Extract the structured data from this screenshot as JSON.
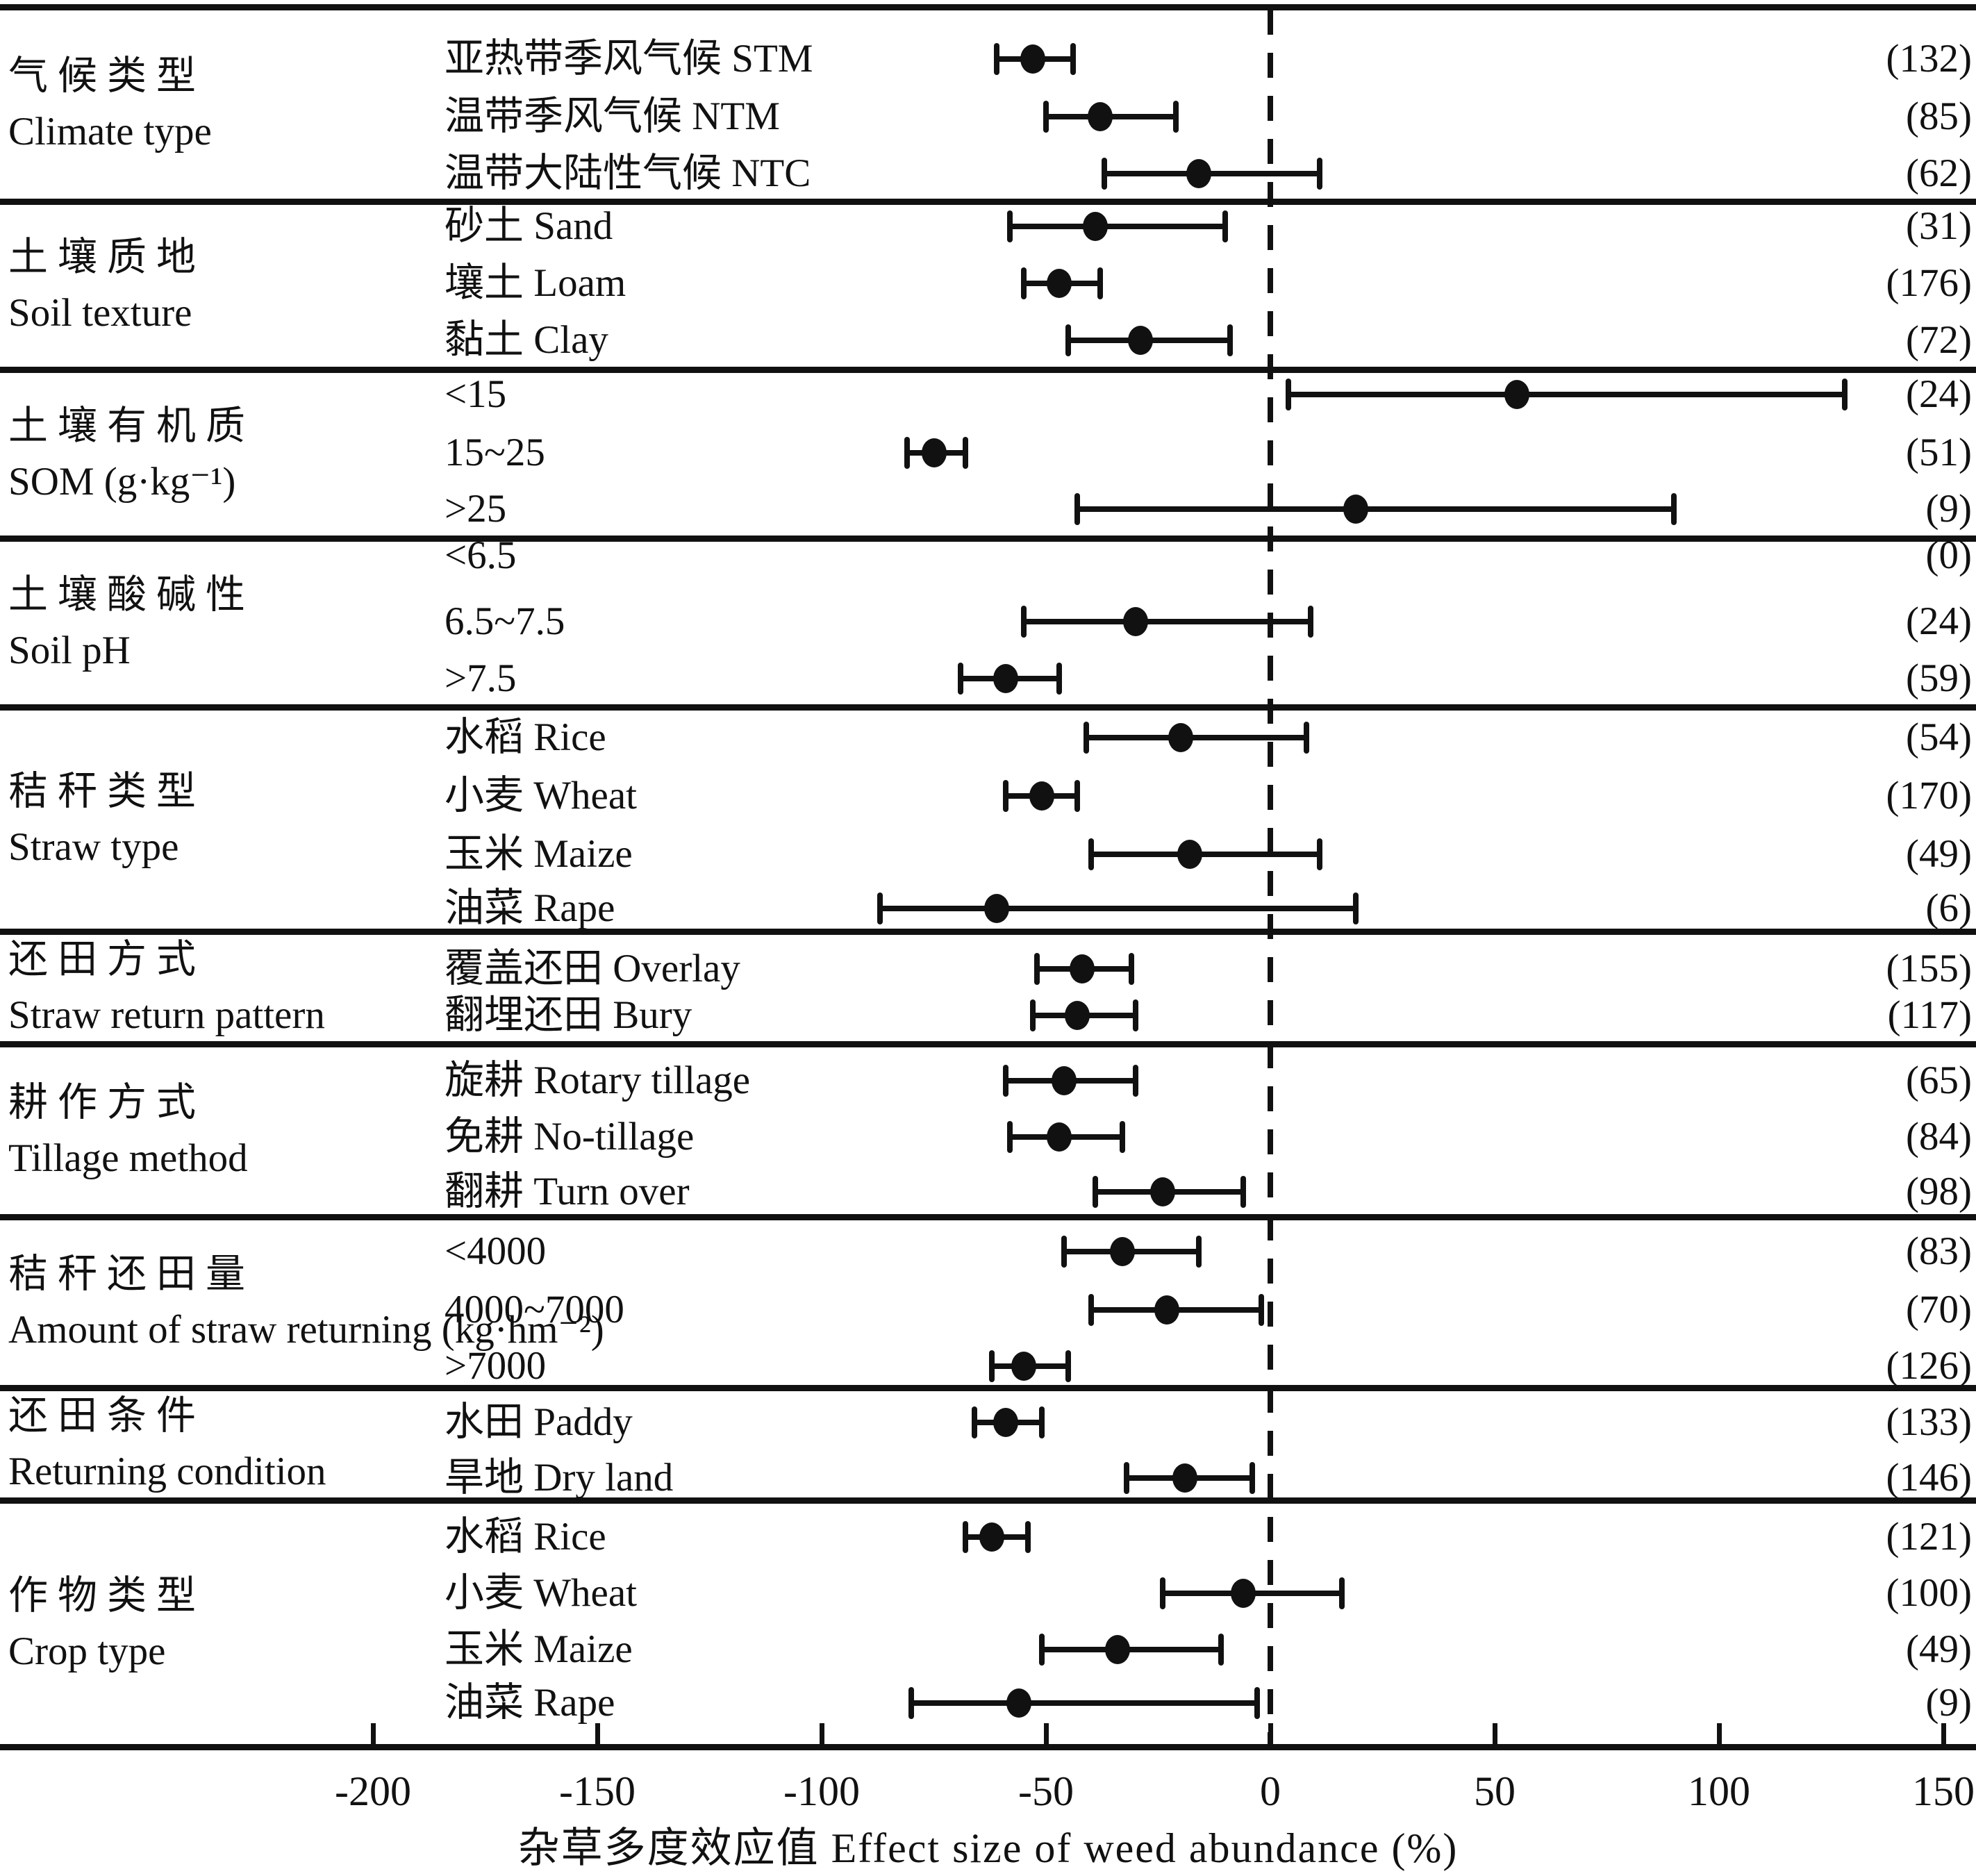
{
  "chart_data": {
    "type": "forest",
    "title": "",
    "xlabel": "杂草多度效应值 Effect size of weed abundance (%)",
    "x_ticks": [
      -200,
      -150,
      -100,
      -50,
      0,
      50,
      100,
      150
    ],
    "xlim": [
      -283,
      157
    ],
    "zero_reference_line": 0,
    "grid": "off",
    "groups": [
      {
        "label_zh": "气候类型",
        "label_en": "Climate type",
        "rows": [
          {
            "label": "亚热带季风气候 STM",
            "effect": -53,
            "ci_low": -61,
            "ci_high": -44,
            "n": 132
          },
          {
            "label": "温带季风气候 NTM",
            "effect": -38,
            "ci_low": -50,
            "ci_high": -21,
            "n": 85
          },
          {
            "label": "温带大陆性气候 NTC",
            "effect": -16,
            "ci_low": -37,
            "ci_high": 11,
            "n": 62
          }
        ]
      },
      {
        "label_zh": "土壤质地",
        "label_en": "Soil texture",
        "rows": [
          {
            "label": "砂土 Sand",
            "effect": -39,
            "ci_low": -58,
            "ci_high": -10,
            "n": 31
          },
          {
            "label": "壤土 Loam",
            "effect": -47,
            "ci_low": -55,
            "ci_high": -38,
            "n": 176
          },
          {
            "label": "黏土 Clay",
            "effect": -29,
            "ci_low": -45,
            "ci_high": -9,
            "n": 72
          }
        ]
      },
      {
        "label_zh": "土壤有机质",
        "label_en": "SOM (g·kg⁻¹)",
        "rows": [
          {
            "label": "<15",
            "effect": 55,
            "ci_low": 4,
            "ci_high": 128,
            "n": 24
          },
          {
            "label": "15~25",
            "effect": -75,
            "ci_low": -81,
            "ci_high": -68,
            "n": 51
          },
          {
            "label": ">25",
            "effect": 19,
            "ci_low": -43,
            "ci_high": 90,
            "n": 9
          }
        ]
      },
      {
        "label_zh": "土壤酸碱性",
        "label_en": "Soil pH",
        "rows": [
          {
            "label": "<6.5",
            "effect": null,
            "ci_low": null,
            "ci_high": null,
            "n": 0
          },
          {
            "label": "6.5~7.5",
            "effect": -30,
            "ci_low": -55,
            "ci_high": 9,
            "n": 24
          },
          {
            "label": ">7.5",
            "effect": -59,
            "ci_low": -69,
            "ci_high": -47,
            "n": 59
          }
        ]
      },
      {
        "label_zh": "秸秆类型",
        "label_en": "Straw type",
        "rows": [
          {
            "label": "水稻 Rice",
            "effect": -20,
            "ci_low": -41,
            "ci_high": 8,
            "n": 54
          },
          {
            "label": "小麦 Wheat",
            "effect": -51,
            "ci_low": -59,
            "ci_high": -43,
            "n": 170
          },
          {
            "label": "玉米 Maize",
            "effect": -18,
            "ci_low": -40,
            "ci_high": 11,
            "n": 49
          },
          {
            "label": "油菜 Rape",
            "effect": -61,
            "ci_low": -87,
            "ci_high": 19,
            "n": 6
          }
        ]
      },
      {
        "label_zh": "还田方式",
        "label_en": "Straw return pattern",
        "rows": [
          {
            "label": "覆盖还田 Overlay",
            "effect": -42,
            "ci_low": -52,
            "ci_high": -31,
            "n": 155
          },
          {
            "label": "翻埋还田 Bury",
            "effect": -43,
            "ci_low": -53,
            "ci_high": -30,
            "n": 117
          }
        ]
      },
      {
        "label_zh": "耕作方式",
        "label_en": "Tillage method",
        "rows": [
          {
            "label": "旋耕 Rotary tillage",
            "effect": -46,
            "ci_low": -59,
            "ci_high": -30,
            "n": 65
          },
          {
            "label": "免耕 No-tillage",
            "effect": -47,
            "ci_low": -58,
            "ci_high": -33,
            "n": 84
          },
          {
            "label": "翻耕 Turn over",
            "effect": -24,
            "ci_low": -39,
            "ci_high": -6,
            "n": 98
          }
        ]
      },
      {
        "label_zh": "秸秆还田量",
        "label_en": "Amount of straw returning (kg·hm⁻²)",
        "rows": [
          {
            "label": "<4000",
            "effect": -33,
            "ci_low": -46,
            "ci_high": -16,
            "n": 83
          },
          {
            "label": "4000~7000",
            "effect": -23,
            "ci_low": -40,
            "ci_high": -2,
            "n": 70
          },
          {
            "label": ">7000",
            "effect": -55,
            "ci_low": -62,
            "ci_high": -45,
            "n": 126
          }
        ]
      },
      {
        "label_zh": "还田条件",
        "label_en": "Returning condition",
        "rows": [
          {
            "label": "水田 Paddy",
            "effect": -59,
            "ci_low": -66,
            "ci_high": -51,
            "n": 133
          },
          {
            "label": "旱地 Dry land",
            "effect": -19,
            "ci_low": -32,
            "ci_high": -4,
            "n": 146
          }
        ]
      },
      {
        "label_zh": "作物类型",
        "label_en": "Crop type",
        "rows": [
          {
            "label": "水稻 Rice",
            "effect": -62,
            "ci_low": -68,
            "ci_high": -54,
            "n": 121
          },
          {
            "label": "小麦 Wheat",
            "effect": -6,
            "ci_low": -24,
            "ci_high": 16,
            "n": 100
          },
          {
            "label": "玉米 Maize",
            "effect": -34,
            "ci_low": -51,
            "ci_high": -11,
            "n": 49
          },
          {
            "label": "油菜 Rape",
            "effect": -56,
            "ci_low": -80,
            "ci_high": -3,
            "n": 9
          }
        ]
      }
    ],
    "colors": {
      "ink": "#111111",
      "background": "#ffffff"
    }
  }
}
